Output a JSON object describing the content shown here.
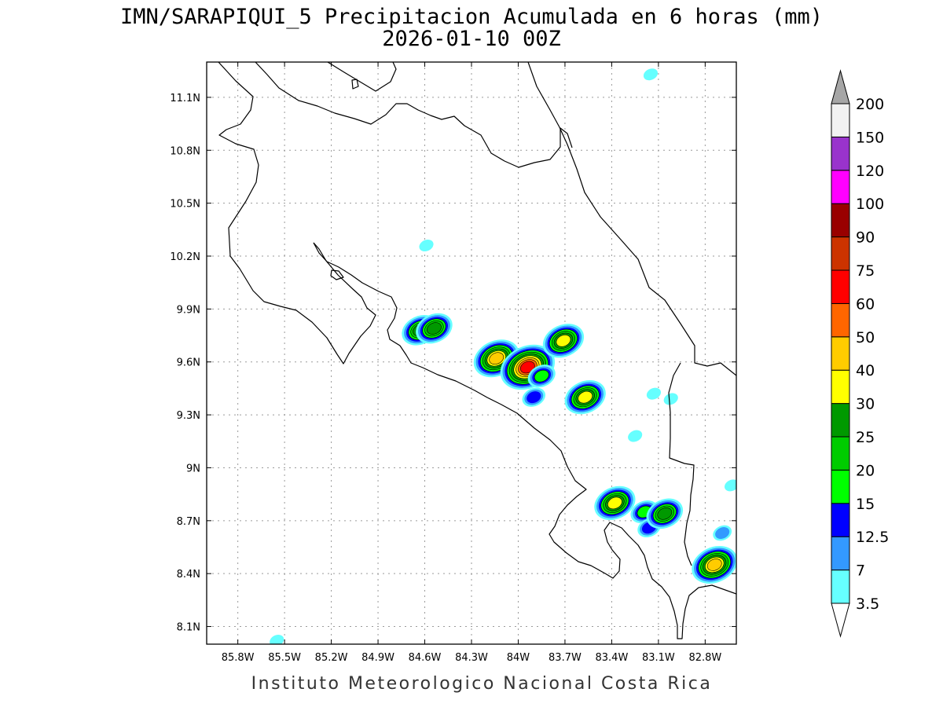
{
  "title": {
    "line1": "IMN/SARAPIQUI_5 Precipitacion Acumulada en 6 horas (mm)",
    "line2": "2026-01-10 00Z"
  },
  "footer": "Instituto Meteorologico Nacional Costa Rica",
  "map": {
    "lon_range": [
      -86.0,
      -82.6
    ],
    "lat_range": [
      8.0,
      11.3
    ],
    "x_ticks": [
      {
        "lon": -85.8,
        "label": "85.8W"
      },
      {
        "lon": -85.5,
        "label": "85.5W"
      },
      {
        "lon": -85.2,
        "label": "85.2W"
      },
      {
        "lon": -84.9,
        "label": "84.9W"
      },
      {
        "lon": -84.6,
        "label": "84.6W"
      },
      {
        "lon": -84.3,
        "label": "84.3W"
      },
      {
        "lon": -84.0,
        "label": "84W"
      },
      {
        "lon": -83.7,
        "label": "83.7W"
      },
      {
        "lon": -83.4,
        "label": "83.4W"
      },
      {
        "lon": -83.1,
        "label": "83.1W"
      },
      {
        "lon": -82.8,
        "label": "82.8W"
      }
    ],
    "y_ticks": [
      {
        "lat": 11.1,
        "label": "11.1N"
      },
      {
        "lat": 10.8,
        "label": "10.8N"
      },
      {
        "lat": 10.5,
        "label": "10.5N"
      },
      {
        "lat": 10.2,
        "label": "10.2N"
      },
      {
        "lat": 9.9,
        "label": "9.9N"
      },
      {
        "lat": 9.6,
        "label": "9.6N"
      },
      {
        "lat": 9.3,
        "label": "9.3N"
      },
      {
        "lat": 9.0,
        "label": "9N"
      },
      {
        "lat": 8.7,
        "label": "8.7N"
      },
      {
        "lat": 8.4,
        "label": "8.4N"
      },
      {
        "lat": 8.1,
        "label": "8.1N"
      }
    ],
    "grid": true
  },
  "colorbar": {
    "units": "mm",
    "levels": [
      "3.5",
      "7",
      "12.5",
      "15",
      "20",
      "25",
      "30",
      "40",
      "50",
      "60",
      "75",
      "90",
      "100",
      "120",
      "150",
      "200"
    ],
    "colors": [
      "#66ffff",
      "#3399ff",
      "#0000ff",
      "#00ff00",
      "#00cc00",
      "#009900",
      "#ffff00",
      "#ffcc00",
      "#ff6600",
      "#ff0000",
      "#cc3300",
      "#990000",
      "#ff00ff",
      "#9933cc",
      "#f2f2f2"
    ],
    "over_color": "#a6a6a6",
    "under_color": "#ffffff"
  },
  "precip_cells": [
    {
      "lon": -84.63,
      "lat": 9.78,
      "max_mm": 25
    },
    {
      "lon": -84.54,
      "lat": 9.79,
      "max_mm": 25
    },
    {
      "lon": -84.14,
      "lat": 9.62,
      "max_mm": 40
    },
    {
      "lon": -83.94,
      "lat": 9.57,
      "max_mm": 60
    },
    {
      "lon": -83.85,
      "lat": 9.52,
      "max_mm": 15
    },
    {
      "lon": -83.9,
      "lat": 9.4,
      "max_mm": 12.5
    },
    {
      "lon": -83.71,
      "lat": 9.72,
      "max_mm": 30
    },
    {
      "lon": -83.57,
      "lat": 9.4,
      "max_mm": 30
    },
    {
      "lon": -83.38,
      "lat": 8.8,
      "max_mm": 30
    },
    {
      "lon": -83.19,
      "lat": 8.75,
      "max_mm": 15
    },
    {
      "lon": -83.16,
      "lat": 8.66,
      "max_mm": 12.5
    },
    {
      "lon": -83.06,
      "lat": 8.74,
      "max_mm": 25
    },
    {
      "lon": -82.74,
      "lat": 8.45,
      "max_mm": 40
    },
    {
      "lon": -82.69,
      "lat": 8.63,
      "max_mm": 7
    },
    {
      "lon": -84.59,
      "lat": 10.26,
      "max_mm": 3.5
    },
    {
      "lon": -83.15,
      "lat": 11.23,
      "max_mm": 3.5
    },
    {
      "lon": -83.13,
      "lat": 9.42,
      "max_mm": 3.5
    },
    {
      "lon": -83.02,
      "lat": 9.39,
      "max_mm": 3.5
    },
    {
      "lon": -83.25,
      "lat": 9.18,
      "max_mm": 3.5
    },
    {
      "lon": -82.63,
      "lat": 8.9,
      "max_mm": 3.5
    },
    {
      "lon": -85.55,
      "lat": 8.02,
      "max_mm": 3.5
    }
  ]
}
